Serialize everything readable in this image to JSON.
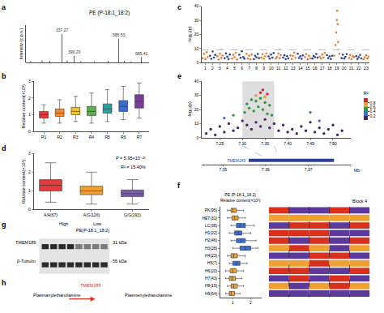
{
  "chart_data": [
    {
      "panel": "a",
      "type": "bar",
      "title": "PE (P-18:1_18:2)",
      "y_label": "Intensity (c.p.s.)",
      "color": "#222222",
      "x": [
        200,
        250,
        283,
        337.27,
        360,
        390.29,
        420,
        480,
        540,
        585.53,
        610,
        640,
        685.41
      ],
      "values": [
        5,
        8,
        6,
        95,
        7,
        22,
        5,
        4,
        6,
        80,
        5,
        4,
        18
      ],
      "peak_labels": [
        337.27,
        390.29,
        585.53,
        685.41
      ],
      "xlim": [
        180,
        720
      ],
      "ylim": [
        0,
        125
      ],
      "tick_labels": false
    },
    {
      "panel": "b",
      "type": "box",
      "y_label": "Relative content(×10³)",
      "categories": [
        "R1",
        "R2",
        "R3",
        "R4",
        "R5",
        "R6",
        "R7"
      ],
      "colors": [
        "#e23b3b",
        "#f08a30",
        "#f2c232",
        "#5ab04a",
        "#2aa3a0",
        "#3a6fd0",
        "#7a3d9a"
      ],
      "lower": [
        0.5,
        0.5,
        0.6,
        0.5,
        0.6,
        0.7,
        0.8
      ],
      "q1": [
        0.8,
        0.9,
        1.0,
        0.95,
        1.1,
        1.2,
        1.4
      ],
      "median": [
        1.0,
        1.1,
        1.2,
        1.2,
        1.35,
        1.5,
        1.8
      ],
      "q3": [
        1.2,
        1.35,
        1.45,
        1.5,
        1.65,
        1.85,
        2.2
      ],
      "upper": [
        1.6,
        1.9,
        2.1,
        2.3,
        2.5,
        2.7,
        2.9
      ],
      "ylim": [
        0,
        3
      ],
      "yticks": [
        0,
        1,
        2,
        3
      ]
    },
    {
      "panel": "c",
      "type": "scatter",
      "y_label": "-log₁₀(p)",
      "series": [
        {
          "color": "#e8772e",
          "x": [
            0.65,
            0.82,
            1,
            1.18,
            1.35,
            2.65,
            2.82,
            3,
            3.18,
            3.35,
            4.65,
            4.82,
            5,
            5.18,
            5.35,
            6.65,
            6.82,
            7,
            7.18,
            7.35,
            8.65,
            8.82,
            9,
            9.18,
            9.35,
            10.65,
            10.82,
            11,
            11.18,
            11.35,
            12.65,
            12.82,
            13,
            13.18,
            13.35,
            14.65,
            14.82,
            15,
            15.18,
            15.35,
            16.65,
            16.82,
            17,
            17.18,
            17.35,
            18.65,
            18.82,
            18.9,
            19,
            19.05,
            19.1,
            19.18,
            19.35,
            20.65,
            20.82,
            21,
            21.18,
            21.35,
            22.65,
            22.82,
            23,
            23.18,
            23.35
          ],
          "values": [
            3.2,
            6.1,
            2.5,
            7.4,
            4.0,
            4.5,
            2.1,
            6.3,
            3.3,
            5.0,
            2.8,
            5.5,
            3.9,
            7.0,
            2.2,
            6.2,
            3.0,
            4.8,
            2.4,
            5.7,
            3.5,
            5.9,
            2.7,
            4.4,
            6.6,
            2.9,
            4.1,
            6.4,
            3.2,
            5.3,
            5.1,
            2.6,
            4.7,
            7.1,
            3.4,
            3.8,
            6.0,
            2.3,
            4.9,
            3.1,
            4.2,
            2.9,
            5.8,
            3.6,
            6.9,
            5.0,
            12.5,
            21.4,
            30.2,
            36.8,
            27.3,
            14.6,
            6.2,
            3.3,
            5.4,
            2.6,
            4.5,
            3.9,
            2.4,
            3.7,
            5.2,
            2.9,
            4.3
          ]
        },
        {
          "color": "#2b3f94",
          "x": [
            1.65,
            1.82,
            2,
            2.18,
            2.35,
            3.65,
            3.82,
            4,
            4.18,
            4.35,
            5.65,
            5.82,
            6,
            6.18,
            6.35,
            7.65,
            7.82,
            8,
            8.18,
            8.35,
            9.65,
            9.82,
            10,
            10.18,
            10.35,
            11.65,
            11.82,
            12,
            12.18,
            12.35,
            13.65,
            13.82,
            14,
            14.18,
            14.35,
            15.65,
            15.82,
            16,
            16.18,
            16.35,
            17.65,
            17.82,
            18,
            18.18,
            18.35,
            19.65,
            19.82,
            20,
            20.18,
            20.35,
            21.65,
            21.82,
            22,
            22.18,
            22.35
          ],
          "values": [
            4.8,
            2.7,
            7.9,
            3.6,
            5.5,
            3.1,
            6.5,
            4.2,
            2.5,
            5.8,
            5.6,
            3.4,
            8.1,
            4.0,
            2.8,
            2.6,
            4.9,
            3.7,
            6.1,
            3.2,
            4.4,
            2.8,
            5.7,
            3.5,
            6.8,
            3.6,
            5.2,
            2.4,
            4.6,
            3.0,
            6.3,
            3.3,
            4.5,
            2.7,
            5.1,
            2.9,
            4.7,
            3.8,
            6.2,
            3.5,
            5.3,
            3.1,
            4.4,
            2.6,
            4.9,
            3.2,
            5.6,
            2.9,
            4.1,
            6.0,
            4.6,
            2.5,
            3.9,
            5.4,
            3.0
          ]
        }
      ],
      "xlim": [
        0.5,
        23.5
      ],
      "xticks": [
        1,
        2,
        3,
        4,
        5,
        6,
        7,
        8,
        9,
        10,
        11,
        12,
        13,
        14,
        15,
        16,
        17,
        18,
        19,
        20,
        21,
        22,
        23
      ],
      "ylim": [
        0,
        40
      ],
      "yticks": [
        0,
        10,
        20,
        30,
        40
      ],
      "threshold": 9
    },
    {
      "panel": "d",
      "type": "box",
      "y_label": "Relative content(×10³)",
      "categories": [
        "A/A(67)",
        "A/G(126)",
        "G/G(193)"
      ],
      "colors": [
        "#e23b3b",
        "#f0a030",
        "#7a5cb0"
      ],
      "lower": [
        0.4,
        0.3,
        0.3
      ],
      "q1": [
        1.0,
        0.8,
        0.7
      ],
      "median": [
        1.3,
        1.0,
        0.85
      ],
      "q3": [
        1.6,
        1.25,
        1.05
      ],
      "upper": [
        2.5,
        2.0,
        1.6
      ],
      "ylim": [
        0,
        3
      ],
      "yticks": [
        0,
        1,
        2,
        3
      ],
      "annotations": [
        "P = 5.95×10⁻²³",
        "R² = 15.40%"
      ]
    },
    {
      "panel": "e",
      "type": "scatter",
      "y_label": "-log₁₀(p)",
      "x": [
        7.22,
        7.23,
        7.24,
        7.25,
        7.26,
        7.27,
        7.28,
        7.29,
        7.3,
        7.31,
        7.32,
        7.33,
        7.34,
        7.35,
        7.36,
        7.37,
        7.38,
        7.39,
        7.4,
        7.41,
        7.42,
        7.43,
        7.44,
        7.45,
        7.46,
        7.47,
        7.48,
        7.49,
        7.5,
        7.51,
        7.52,
        7.305,
        7.31,
        7.315,
        7.32,
        7.325,
        7.33,
        7.335,
        7.34,
        7.345,
        7.35,
        7.355,
        7.36,
        7.365,
        7.26,
        7.28,
        7.45,
        7.47,
        7.33,
        7.34,
        7.35,
        7.345,
        7.355
      ],
      "values": [
        3,
        6,
        2,
        8,
        4,
        10,
        5,
        7,
        12,
        9,
        6,
        11,
        8,
        13,
        7,
        10,
        5,
        9,
        4,
        6,
        3,
        8,
        5,
        11,
        4,
        7,
        3,
        6,
        9,
        2,
        5,
        18,
        24,
        21,
        27,
        19,
        26,
        22,
        28,
        20,
        25,
        17,
        23,
        16,
        14,
        16,
        18,
        12,
        30,
        32,
        29,
        34,
        31
      ],
      "r2": [
        0.1,
        0.1,
        0.1,
        0.1,
        0.1,
        0.1,
        0.1,
        0.1,
        0.1,
        0.1,
        0.1,
        0.1,
        0.1,
        0.1,
        0.1,
        0.1,
        0.1,
        0.1,
        0.1,
        0.1,
        0.1,
        0.1,
        0.1,
        0.1,
        0.1,
        0.1,
        0.1,
        0.1,
        0.1,
        0.1,
        0.1,
        0.5,
        0.5,
        0.5,
        0.5,
        0.5,
        0.5,
        0.5,
        0.5,
        0.5,
        0.5,
        0.5,
        0.5,
        0.5,
        0.3,
        0.5,
        0.5,
        0.3,
        0.7,
        0.9,
        0.7,
        0.9,
        0.9
      ],
      "colorbar": {
        "title": "R²",
        "range": [
          0,
          1
        ],
        "ticks": [
          0.2,
          0.4,
          0.6,
          0.8
        ],
        "colors": [
          "#4b1f7a",
          "#3a6fd0",
          "#2e9e3a",
          "#f0a030",
          "#e02020"
        ]
      },
      "xlim": [
        7.21,
        7.54
      ],
      "xticks": [
        7.25,
        {
          "value": 7.3,
          "label": "7.30"
        },
        7.35,
        {
          "value": 7.4,
          "label": "7.40"
        },
        7.45,
        {
          "value": 7.5,
          "label": "7.50"
        }
      ],
      "ylim": [
        0,
        40
      ],
      "yticks": [
        0,
        10,
        20,
        30,
        40
      ],
      "highlight": [
        7.3,
        7.37
      ],
      "gene": {
        "name": "TMEM189",
        "start": 7.356,
        "end": 7.376,
        "xlim": [
          7.345,
          7.38
        ],
        "xticks": [
          7.35,
          7.36,
          7.37
        ],
        "x_label": "Mb"
      }
    },
    {
      "panel": "f",
      "type": "box",
      "orientation": "horizontal",
      "x_label": [
        "PE (P-18:1_18:2)",
        "Relative content(×10³)"
      ],
      "categories": [
        "PK(95)",
        "HET(31)",
        "LC(38)",
        "H1(22)",
        "H2(46)",
        "H3(28)",
        "H4(23)",
        "H5(7)",
        "H6(20)",
        "H7(43)",
        "H8(19)",
        "H9(64)"
      ],
      "colors": [
        "#f0a030",
        "#f0a030",
        "#3a6fd0",
        "#3a6fd0",
        "#3a6fd0",
        "#3a6fd0",
        "#f0a030",
        "#3a6fd0",
        "#f0a030",
        "#f0a030",
        "#f0a030",
        "#f0a030"
      ],
      "lower": [
        0.7,
        0.7,
        0.9,
        0.8,
        0.9,
        1.0,
        0.7,
        0.8,
        0.6,
        0.6,
        0.7,
        0.6
      ],
      "q1": [
        0.9,
        0.95,
        1.2,
        1.1,
        1.2,
        1.4,
        0.9,
        1.0,
        0.85,
        0.8,
        0.9,
        0.8
      ],
      "median": [
        1.0,
        1.1,
        1.4,
        1.3,
        1.45,
        1.7,
        1.05,
        1.2,
        1.0,
        0.95,
        1.05,
        0.9
      ],
      "q3": [
        1.2,
        1.3,
        1.7,
        1.5,
        1.7,
        2.0,
        1.25,
        1.4,
        1.2,
        1.15,
        1.25,
        1.1
      ],
      "upper": [
        1.6,
        1.7,
        2.2,
        2.0,
        2.3,
        2.4,
        1.7,
        1.8,
        1.6,
        1.5,
        1.6,
        1.4
      ],
      "xlim": [
        0.3,
        2.6
      ],
      "xticks": [
        1,
        2
      ],
      "haplotypes": [
        [
          "#d7301f",
          "#5b3a9b",
          "#5b3a9b",
          "#d7301f",
          "#5b3a9b"
        ],
        [
          "#f0a030",
          "#f0a030",
          "#f0a030",
          "#f0a030",
          "#f0a030"
        ],
        [
          "#5b3a9b",
          "#d7301f",
          "#d7301f",
          "#5b3a9b",
          "#d7301f"
        ],
        [
          "#d7301f",
          "#d7301f",
          "#d7301f",
          "#5b3a9b",
          "#5b3a9b"
        ],
        [
          "#d7301f",
          "#5b3a9b",
          "#d7301f",
          "#5b3a9b",
          "#d7301f"
        ],
        [
          "#f0a030",
          "#d7301f",
          "#f0a030",
          "#5b3a9b",
          "#f0a030"
        ],
        [
          "#5b3a9b",
          "#5b3a9b",
          "#d7301f",
          "#d7301f",
          "#5b3a9b"
        ],
        [
          "#f0a030",
          "#f0a030",
          "#d7301f",
          "#f0a030",
          "#f0a030"
        ],
        [
          "#d7301f",
          "#d7301f",
          "#5b3a9b",
          "#5b3a9b",
          "#d7301f"
        ],
        [
          "#5b3a9b",
          "#d7301f",
          "#5b3a9b",
          "#d7301f",
          "#5b3a9b"
        ],
        [
          "#f0a030",
          "#5b3a9b",
          "#f0a030",
          "#d7301f",
          "#f0a030"
        ],
        [
          "#5b3a9b",
          "#5b3a9b",
          "#5b3a9b",
          "#5b3a9b",
          "#5b3a9b"
        ]
      ],
      "block_label": "Block 4"
    }
  ],
  "blot": {
    "panel": "g",
    "groups": [
      "High",
      "Low"
    ],
    "group_label": "PE(P-18:1_18:2)",
    "rows": [
      {
        "name": "TMEM189",
        "size": "31 kDa"
      },
      {
        "name": "β-Tubulin",
        "size": "55 kDa"
      }
    ]
  },
  "reaction": {
    "panel": "h",
    "substrate": "Plasmanylethanolamine",
    "enzyme": "TMEM189",
    "product": "Plasmenylethanolamine"
  }
}
